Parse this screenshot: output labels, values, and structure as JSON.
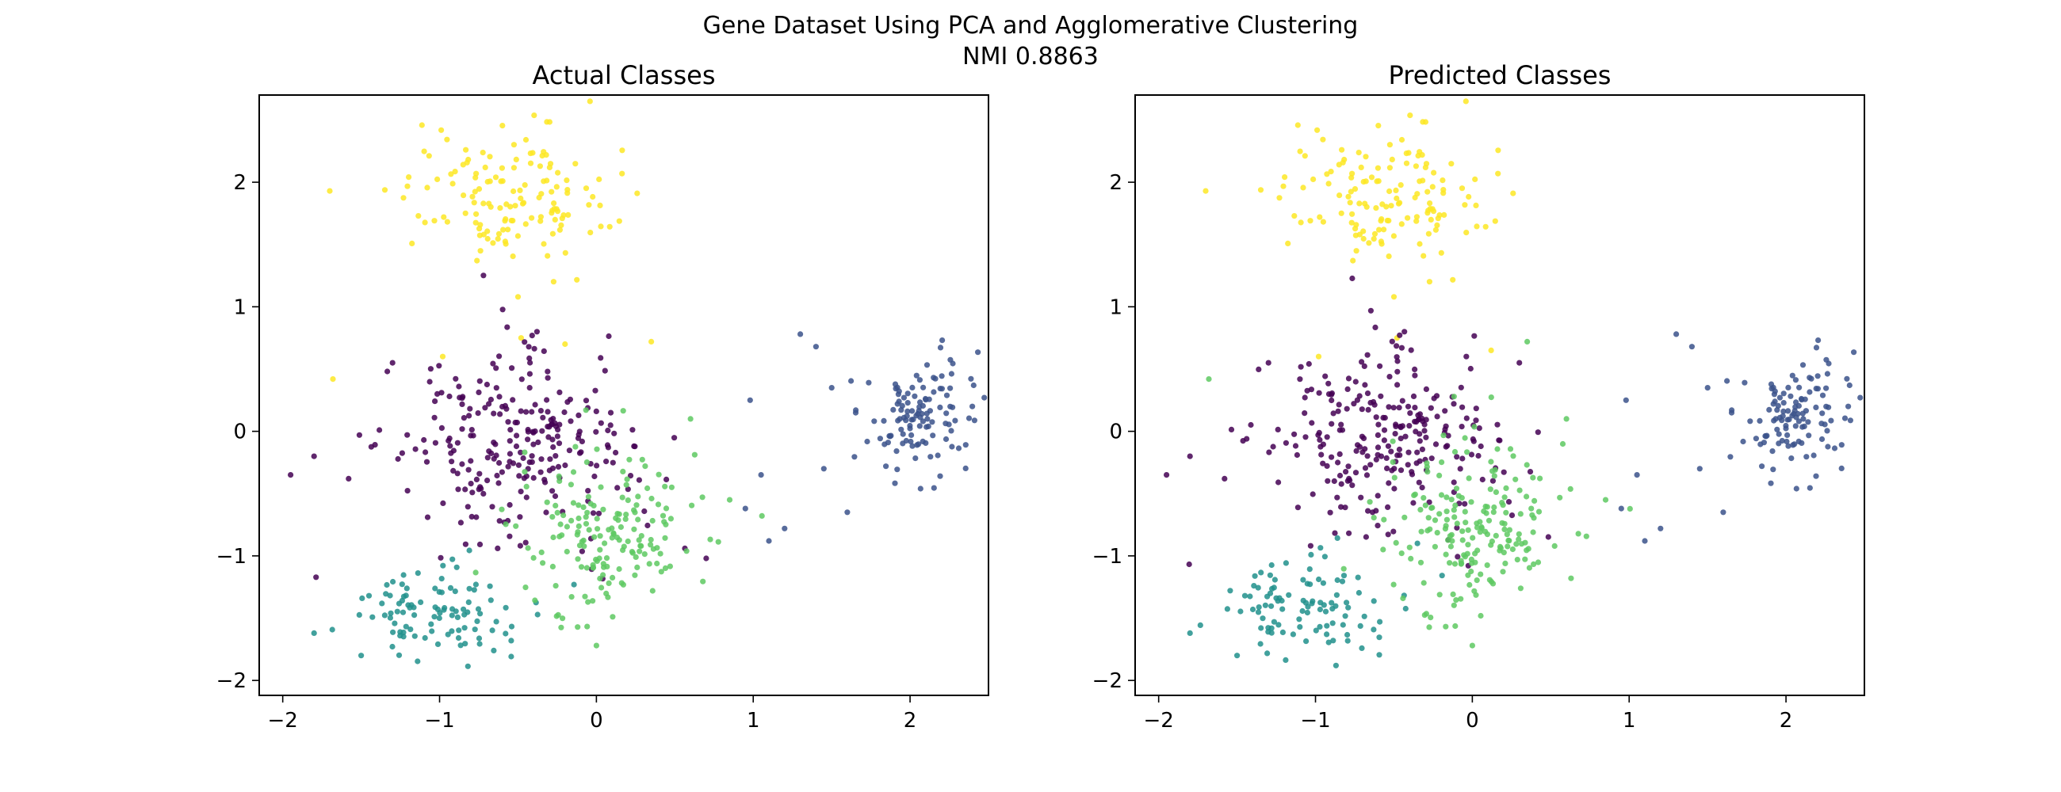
{
  "figure": {
    "title_line1": "Gene Dataset Using PCA and Agglomerative Clustering",
    "title_line2": "NMI 0.8863"
  },
  "chart_data": [
    {
      "type": "scatter",
      "title": "Actual Classes",
      "xlabel": "",
      "ylabel": "",
      "xlim": [
        -2.15,
        2.5
      ],
      "ylim": [
        -2.12,
        2.7
      ],
      "xticks": [
        -2,
        -1,
        0,
        1,
        2
      ],
      "yticks": [
        -2,
        -1,
        0,
        1,
        2
      ],
      "grid": false,
      "series": [
        {
          "color": "#fde725",
          "center": [
            -0.6,
            1.9
          ],
          "spread": [
            0.33,
            0.28
          ],
          "count": 140,
          "extra": [
            [
              -1.7,
              1.93
            ],
            [
              -1.68,
              0.42
            ],
            [
              -0.98,
              0.6
            ],
            [
              -0.48,
              0.75
            ],
            [
              -0.2,
              0.7
            ],
            [
              0.35,
              0.72
            ],
            [
              -0.5,
              1.08
            ]
          ]
        },
        {
          "color": "#440154",
          "center": [
            -0.55,
            -0.15
          ],
          "spread": [
            0.38,
            0.38
          ],
          "count": 250,
          "extra": [
            [
              -1.95,
              -0.35
            ],
            [
              -1.8,
              -0.2
            ],
            [
              -1.58,
              -0.38
            ],
            [
              0.7,
              -1.02
            ],
            [
              -1.3,
              0.55
            ]
          ]
        },
        {
          "color": "#21918c",
          "center": [
            -1.0,
            -1.45
          ],
          "spread": [
            0.28,
            0.2
          ],
          "count": 100,
          "extra": [
            [
              -1.8,
              -1.62
            ],
            [
              -1.5,
              -1.8
            ],
            [
              -1.45,
              -1.32
            ]
          ]
        },
        {
          "color": "#5ec962",
          "center": [
            0.05,
            -0.8
          ],
          "spread": [
            0.3,
            0.33
          ],
          "count": 170,
          "extra": [
            [
              0.85,
              -0.55
            ],
            [
              0.6,
              0.1
            ],
            [
              0.0,
              -1.72
            ]
          ]
        },
        {
          "color": "#3b528b",
          "center": [
            2.05,
            0.1
          ],
          "spread": [
            0.18,
            0.25
          ],
          "count": 120,
          "extra": [
            [
              1.3,
              0.78
            ],
            [
              1.4,
              0.68
            ],
            [
              0.98,
              0.25
            ],
            [
              1.05,
              -0.35
            ],
            [
              1.1,
              -0.88
            ],
            [
              1.2,
              -0.78
            ],
            [
              1.5,
              0.35
            ],
            [
              1.6,
              -0.65
            ],
            [
              1.45,
              -0.3
            ],
            [
              0.95,
              -0.62
            ]
          ]
        }
      ]
    },
    {
      "type": "scatter",
      "title": "Predicted Classes",
      "xlabel": "",
      "ylabel": "",
      "xlim": [
        -2.15,
        2.5
      ],
      "ylim": [
        -2.12,
        2.7
      ],
      "xticks": [
        -2,
        -1,
        0,
        1,
        2
      ],
      "yticks": [
        -2,
        -1,
        0,
        1,
        2
      ],
      "grid": false,
      "series": [
        {
          "color": "#fde725",
          "center": [
            -0.6,
            1.9
          ],
          "spread": [
            0.33,
            0.28
          ],
          "count": 140,
          "extra": [
            [
              -1.7,
              1.93
            ],
            [
              -0.98,
              0.6
            ],
            [
              -0.48,
              0.75
            ],
            [
              0.12,
              0.65
            ],
            [
              -0.5,
              1.08
            ]
          ]
        },
        {
          "color": "#440154",
          "center": [
            -0.6,
            -0.1
          ],
          "spread": [
            0.37,
            0.36
          ],
          "count": 250,
          "extra": [
            [
              -1.95,
              -0.35
            ],
            [
              -1.8,
              -0.2
            ],
            [
              -1.58,
              -0.38
            ],
            [
              -1.3,
              0.55
            ],
            [
              0.3,
              0.55
            ]
          ]
        },
        {
          "color": "#21918c",
          "center": [
            -1.05,
            -1.4
          ],
          "spread": [
            0.28,
            0.22
          ],
          "count": 100,
          "extra": [
            [
              -1.8,
              -1.62
            ],
            [
              -1.5,
              -1.8
            ],
            [
              -1.45,
              -1.32
            ],
            [
              -0.35,
              -0.9
            ]
          ]
        },
        {
          "color": "#5ec962",
          "center": [
            0.0,
            -0.75
          ],
          "spread": [
            0.3,
            0.35
          ],
          "count": 190,
          "extra": [
            [
              -1.68,
              0.42
            ],
            [
              0.85,
              -0.55
            ],
            [
              0.6,
              0.1
            ],
            [
              0.0,
              -1.72
            ],
            [
              0.35,
              0.72
            ]
          ]
        },
        {
          "color": "#3b528b",
          "center": [
            2.05,
            0.1
          ],
          "spread": [
            0.18,
            0.25
          ],
          "count": 120,
          "extra": [
            [
              1.3,
              0.78
            ],
            [
              1.4,
              0.68
            ],
            [
              0.98,
              0.25
            ],
            [
              1.05,
              -0.35
            ],
            [
              1.1,
              -0.88
            ],
            [
              1.2,
              -0.78
            ],
            [
              1.5,
              0.35
            ],
            [
              1.6,
              -0.65
            ],
            [
              1.45,
              -0.3
            ],
            [
              0.95,
              -0.62
            ]
          ]
        }
      ]
    }
  ]
}
